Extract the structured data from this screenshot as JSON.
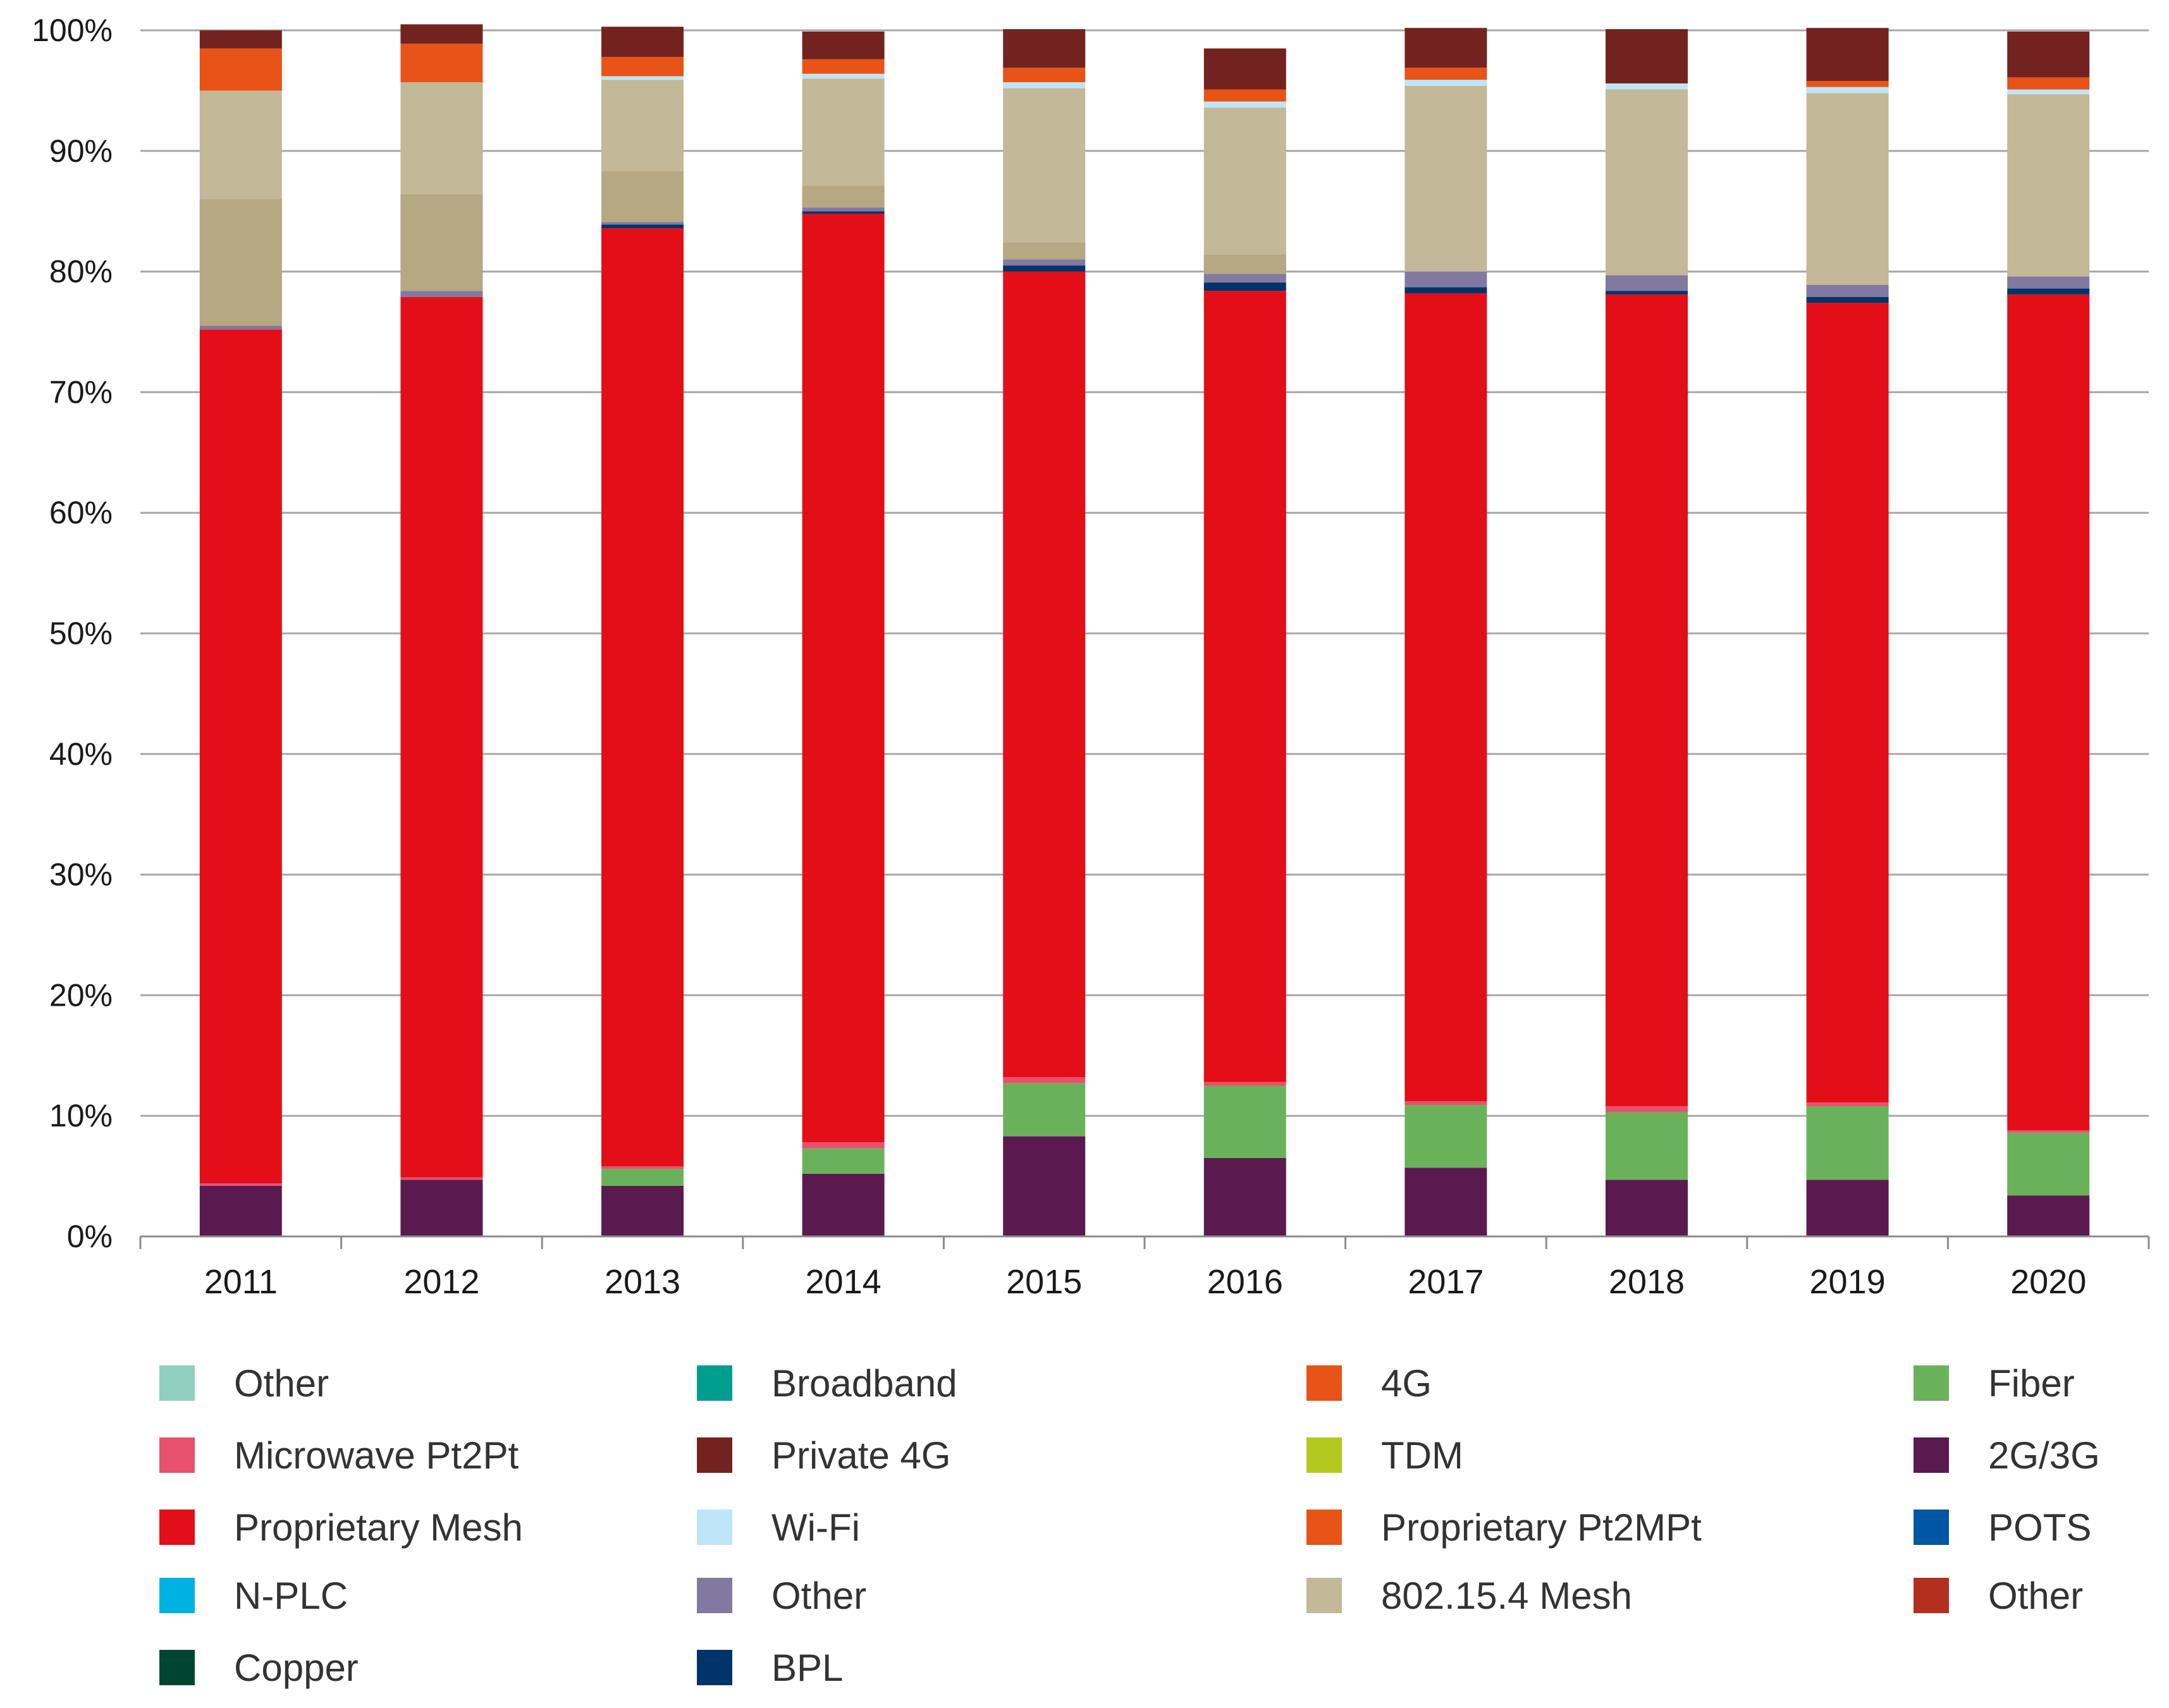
{
  "chart_data": {
    "type": "bar",
    "stacked": true,
    "title": "",
    "xlabel": "",
    "ylabel": "",
    "ylim": [
      0,
      100
    ],
    "y_ticks": [
      "0%",
      "10%",
      "20%",
      "30%",
      "40%",
      "50%",
      "60%",
      "70%",
      "80%",
      "90%",
      "100%"
    ],
    "grid": true,
    "legend_position": "bottom",
    "categories": [
      "2011",
      "2012",
      "2013",
      "2014",
      "2015",
      "2016",
      "2017",
      "2018",
      "2019",
      "2020"
    ],
    "series": [
      {
        "name": "2G/3G",
        "color": "#5a1a4f",
        "values": [
          4.2,
          4.7,
          4.2,
          5.2,
          8.3,
          6.5,
          5.7,
          4.7,
          4.7,
          3.4
        ]
      },
      {
        "name": "Fiber",
        "color": "#6ab25a",
        "values": [
          0,
          0,
          1.4,
          2.1,
          4.4,
          6.0,
          5.2,
          5.6,
          6.1,
          5.2
        ]
      },
      {
        "name": "Microwave Pt2Pt",
        "color": "#e8516e",
        "values": [
          0.2,
          0.2,
          0.2,
          0.5,
          0.5,
          0.3,
          0.3,
          0.5,
          0.3,
          0.2
        ]
      },
      {
        "name": "Proprietary Mesh",
        "color": "#e30e18",
        "values": [
          70.8,
          73.0,
          77.8,
          77.0,
          66.8,
          65.6,
          67.0,
          67.3,
          66.3,
          69.3
        ]
      },
      {
        "name": "BPL",
        "color": "#003369",
        "values": [
          0,
          0,
          0.3,
          0.2,
          0.5,
          0.7,
          0.5,
          0.3,
          0.5,
          0.5
        ]
      },
      {
        "name": "Other",
        "color": "#8179a0",
        "values": [
          0.3,
          0.5,
          0.2,
          0.3,
          0.5,
          0.7,
          1.3,
          1.3,
          1.0,
          1.0
        ]
      },
      {
        "name": "802.15.4 Mesh",
        "color": "#c3b897",
        "values": [
          19.5,
          17.3,
          11.8,
          10.7,
          14.2,
          13.8,
          15.4,
          15.4,
          15.9,
          15.1
        ]
      },
      {
        "name": "Wi-Fi",
        "color": "#bde5f7",
        "values": [
          0,
          0,
          0.3,
          0.4,
          0.5,
          0.5,
          0.5,
          0.5,
          0.5,
          0.4
        ]
      },
      {
        "name": "4G",
        "color": "#e85317",
        "values": [
          3.5,
          3.2,
          1.6,
          1.2,
          1.2,
          1.0,
          1.0,
          0,
          0.5,
          1.0
        ]
      },
      {
        "name": "Private 4G",
        "color": "#73231f",
        "values": [
          1.5,
          1.6,
          2.5,
          2.3,
          3.2,
          3.4,
          3.3,
          4.5,
          4.4,
          3.8
        ]
      }
    ],
    "stack_shading": {
      "802.15.4 Mesh": {
        "lower_darker_portion": [
          10.5,
          8.0,
          4.2,
          1.8,
          1.4,
          1.6,
          0,
          0,
          0,
          0
        ],
        "darker_color": "#b5a882"
      }
    },
    "legend": [
      {
        "label": "Other",
        "color": "#8ecfc0"
      },
      {
        "label": "Broadband",
        "color": "#009e8f"
      },
      {
        "label": "4G",
        "color": "#e85317"
      },
      {
        "label": "Fiber",
        "color": "#6ab25a"
      },
      {
        "label": "Microwave Pt2Pt",
        "color": "#e8516e"
      },
      {
        "label": "Private 4G",
        "color": "#73231f"
      },
      {
        "label": "TDM",
        "color": "#b3c91f"
      },
      {
        "label": "2G/3G",
        "color": "#5a1a4f"
      },
      {
        "label": "Proprietary Mesh",
        "color": "#e30e18"
      },
      {
        "label": "Wi-Fi",
        "color": "#bde5f7"
      },
      {
        "label": "Proprietary Pt2MPt",
        "color": "#e85317"
      },
      {
        "label": "POTS",
        "color": "#0057a3"
      },
      {
        "label": "N-PLC",
        "color": "#00b2e3"
      },
      {
        "label": "Other",
        "color": "#8179a0"
      },
      {
        "label": "802.15.4 Mesh",
        "color": "#c3b897"
      },
      {
        "label": "Other",
        "color": "#b4301e"
      },
      {
        "label": "Copper",
        "color": "#00452f"
      },
      {
        "label": "BPL",
        "color": "#003369"
      }
    ]
  }
}
